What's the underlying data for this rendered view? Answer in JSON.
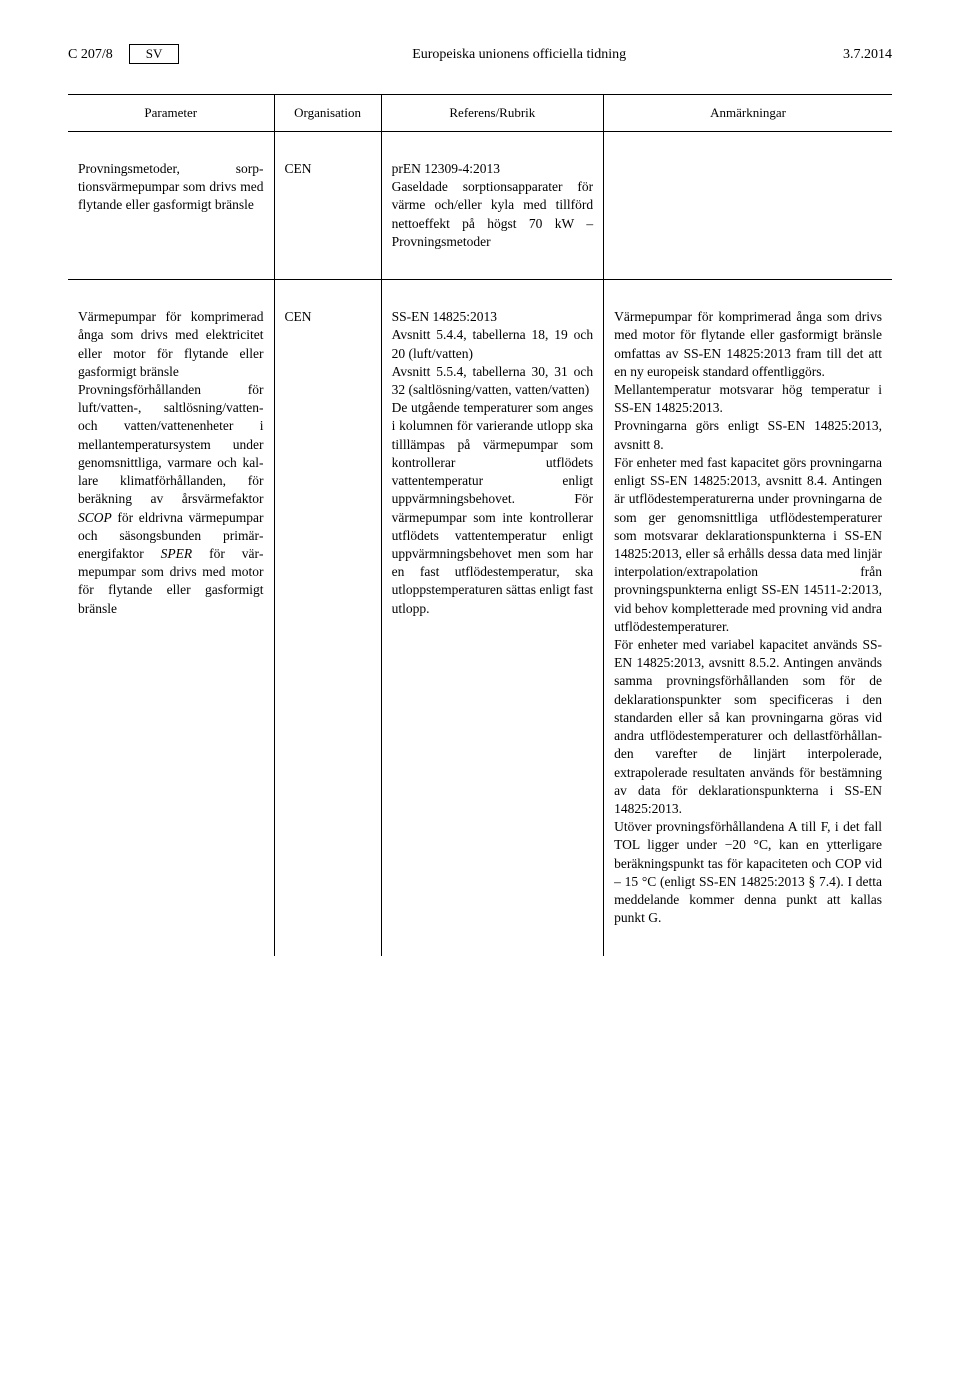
{
  "header": {
    "page_ref": "C 207/8",
    "lang": "SV",
    "journal": "Europeiska unionens officiella tidning",
    "date": "3.7.2014"
  },
  "table": {
    "columns": {
      "parameter": "Parameter",
      "organisation": "Organisation",
      "reference": "Referens/Rubrik",
      "remarks": "Anmärkningar"
    },
    "rows": [
      {
        "parameter": "Provningsmetoder, sorp­tionsvärmepumpar som drivs med flytande eller gasformigt bränsle",
        "organisation": "CEN",
        "reference": "prEN 12309-4:2013\nGaseldade sorptionsappara­ter för värme och/eller kyla med tillförd nettoef­fekt på högst 70 kW – Provningsmetoder",
        "remarks": ""
      },
      {
        "parameter": "Värmepumpar för kom­primerad ånga som drivs med elektricitet eller motor för flytande eller gasformigt bränsle\nProvningsförhållanden för luft/vatten-, saltlösning/vatten- och vatten/vatten­enheter i mellantempera­tursystem under genom­snittliga, varmare och kal­lare klimatförhållanden, för beräkning av årsvär­mefaktor SCOP för eld­rivna värmepumpar och säsongsbunden primär­energifaktor SPER för vär­mepumpar som drivs med motor för flytande eller gasformigt bränsle",
        "organisation": "CEN",
        "reference": "SS-EN 14825:2013\nAvsnitt 5.4.4, tabellerna 18, 19 och 20 (luft/vatten)\nAvsnitt 5.5.4, tabellerna 30, 31 och 32 (saltlös­ning/vatten, vatten/vatten)\nDe utgående temperaturer som anges i kolumnen för varierande utlopp ska till­lämpas på värmepumpar som kontrollerar utflödets vattentemperatur enligt uppvärmningsbehovet. För värmepumpar som inte kontrollerar utflödets vat­tentemperatur enligt upp­värmningsbehovet men som har en fast utflödes­temperatur, ska utlopps­temperaturen sättas enligt fast utlopp.",
        "remarks": "Värmepumpar för komprimerad ånga som drivs med motor för flytande eller gasformigt bränsle omfattas av SS-EN 14825:2013 fram till det att en ny europeisk standard offentlig­görs.\nMellantemperatur motsvarar hög tem­peratur i SS-EN 14825:2013.\nProvningarna görs enligt SS-EN 14825:2013, avsnitt 8.\nFör enheter med fast kapacitet görs provningarna enligt SS-EN 14825:2013, avsnitt 8.4. Antingen är utflödestemperaturerna under prov­ningarna de som ger genomsnittliga utflödestemperaturer som motsvarar deklarationspunkterna i SS-EN 14825:2013, eller så erhålls dessa data med linjär interpolation/extrapo­lation från provningspunkterna enligt SS-EN 14511-2:2013, vid behov kompletterade med provning vid andra utflödestemperaturer.\nFör enheter med variabel kapacitet används SS-EN 14825:2013, avsnitt 8.5.2. Antingen används samma provningsförhållanden som för de deklarationspunkter som speci­ficeras i den standarden eller så kan provningarna göras vid andra utflö­destemperaturer och dellastförhållan­den varefter de linjärt interpolerade, extrapolerade resultaten används för bestämning av data för deklarations­punkterna i SS-EN 14825:2013.\nUtöver provningsförhållandena A till F, i det fall TOL ligger under −20 °C, kan en ytterligare beräkningspunkt tas för kapaciteten och COP vid – 15 °C (enligt SS-EN 14825:2013 § 7.4). I detta meddelande kommer denna punkt att kallas punkt G."
      }
    ]
  }
}
